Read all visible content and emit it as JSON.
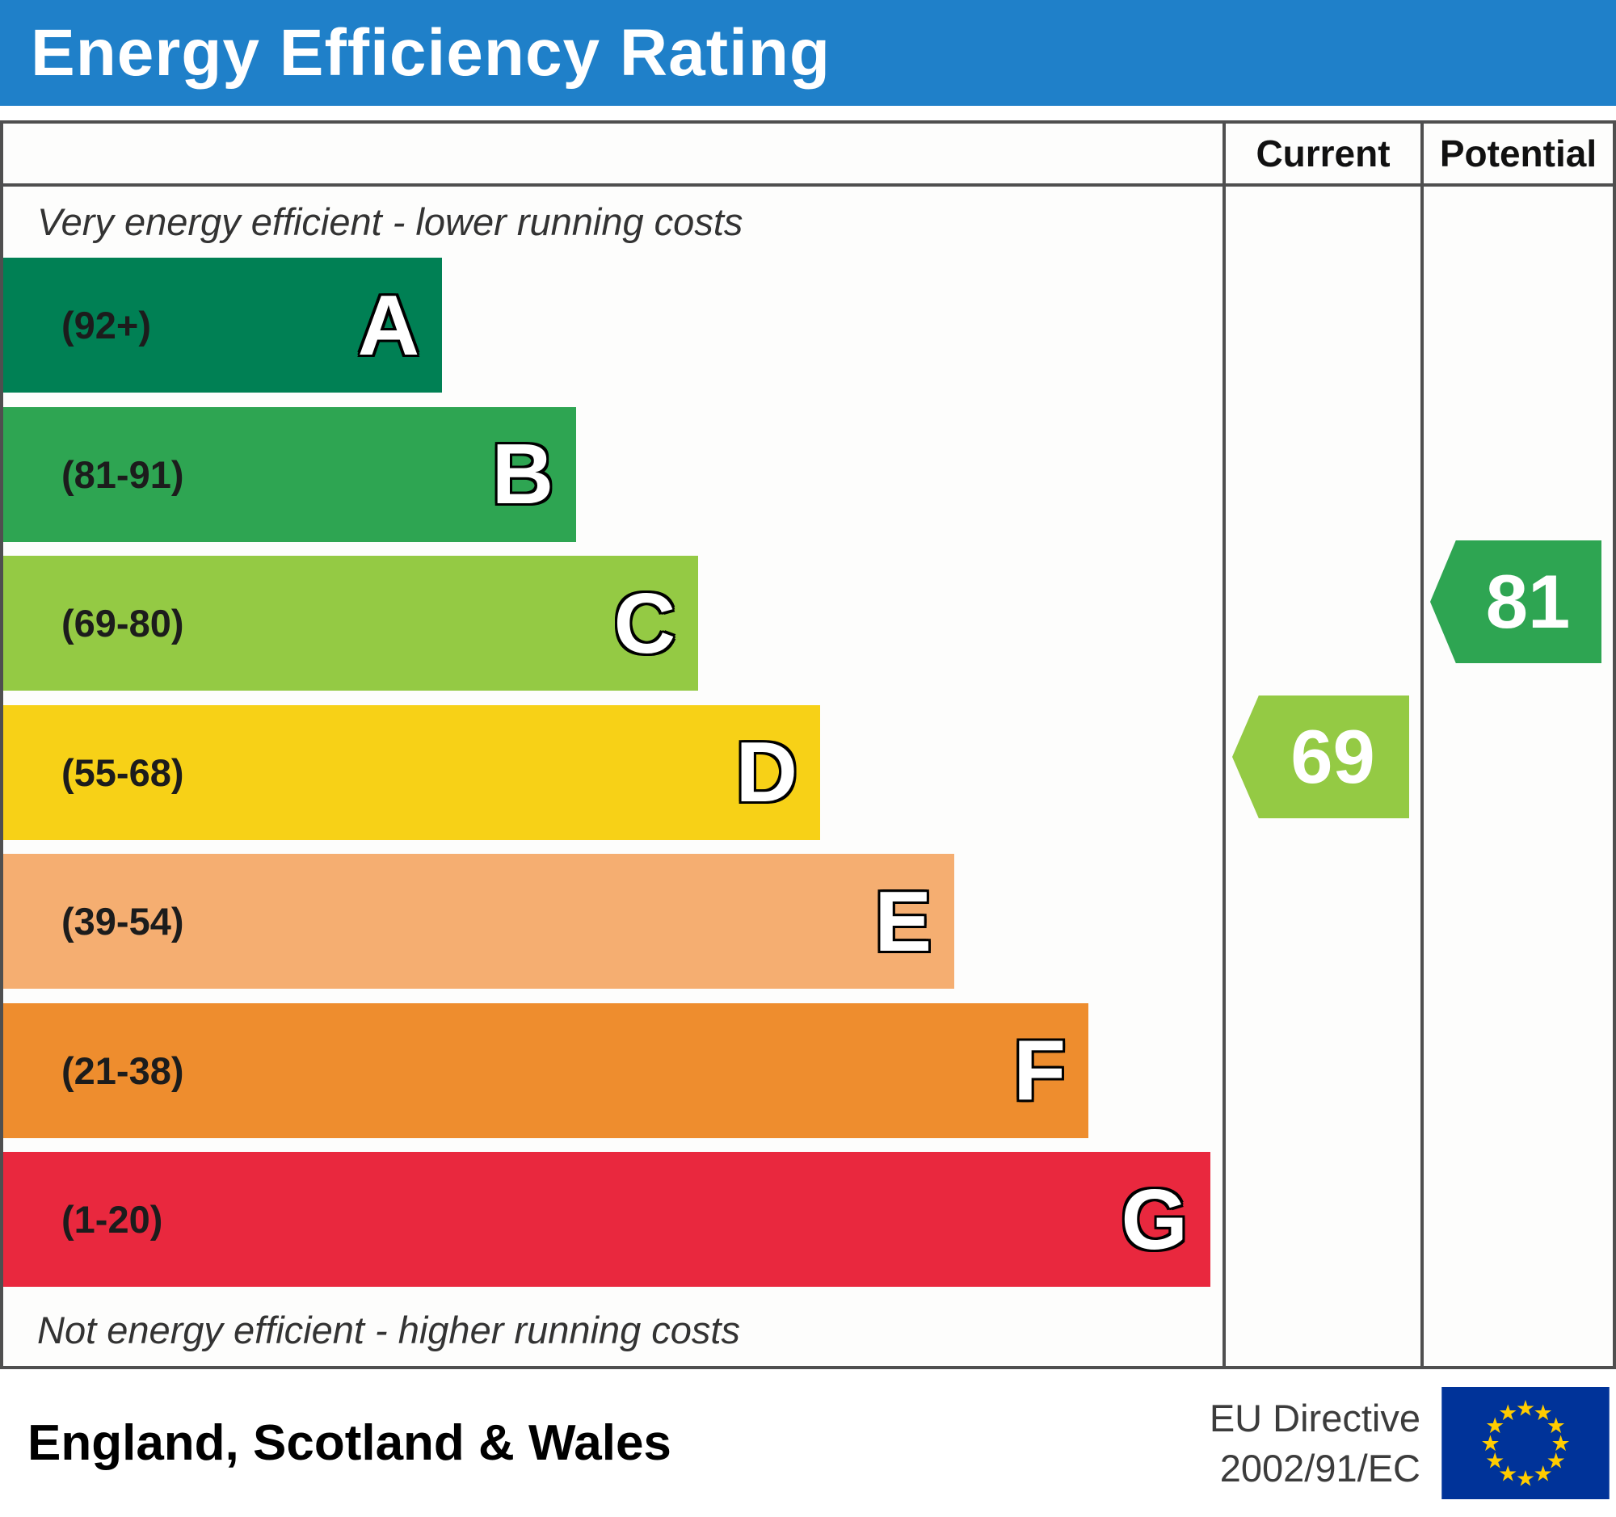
{
  "title": "Energy Efficiency Rating",
  "columns": {
    "current": "Current",
    "potential": "Potential"
  },
  "notes": {
    "top": "Very energy efficient - lower running costs",
    "bottom": "Not energy efficient - higher running costs"
  },
  "footer": {
    "region": "England, Scotland & Wales",
    "directive": [
      "EU Directive",
      "2002/91/EC"
    ],
    "eu_flag_icon": "eu-flag-icon",
    "eu_flag_blue": "#003399",
    "eu_star_yellow": "#ffcc00"
  },
  "chart_data": {
    "type": "bar",
    "orientation": "horizontal",
    "title": "Energy Efficiency Rating",
    "bands": [
      {
        "letter": "A",
        "range": "(92+)",
        "min": 92,
        "max": 100,
        "color": "#008054",
        "width_pct": 36
      },
      {
        "letter": "B",
        "range": "(81-91)",
        "min": 81,
        "max": 91,
        "color": "#2ea552",
        "width_pct": 47
      },
      {
        "letter": "C",
        "range": "(69-80)",
        "min": 69,
        "max": 80,
        "color": "#94ca44",
        "width_pct": 57
      },
      {
        "letter": "D",
        "range": "(55-68)",
        "min": 55,
        "max": 68,
        "color": "#f7d117",
        "width_pct": 67
      },
      {
        "letter": "E",
        "range": "(39-54)",
        "min": 39,
        "max": 54,
        "color": "#f5ae71",
        "width_pct": 78
      },
      {
        "letter": "F",
        "range": "(21-38)",
        "min": 21,
        "max": 38,
        "color": "#ee8d2e",
        "width_pct": 89
      },
      {
        "letter": "G",
        "range": "(1-20)",
        "min": 1,
        "max": 20,
        "color": "#e9283e",
        "width_pct": 99
      }
    ],
    "current": {
      "value": 69,
      "band": "C",
      "color": "#94ca44"
    },
    "potential": {
      "value": 81,
      "band": "B",
      "color": "#2ea552"
    }
  }
}
